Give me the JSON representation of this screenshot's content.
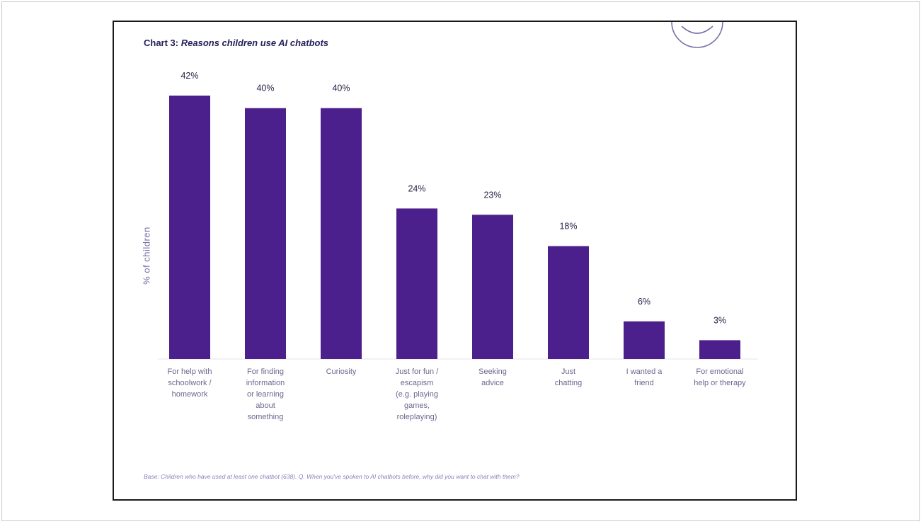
{
  "chart_data": {
    "type": "bar",
    "title_prefix": "Chart 3:",
    "title": "Reasons children use AI chatbots",
    "ylabel": "% of children",
    "xlabel": "",
    "categories": [
      [
        "For help with",
        "schoolwork /",
        "homework"
      ],
      [
        "For finding",
        "information",
        "or learning",
        "about",
        "something"
      ],
      [
        "Curiosity"
      ],
      [
        "Just for fun /",
        "escapism",
        "(e.g. playing",
        "games,",
        "roleplaying)"
      ],
      [
        "Seeking",
        "advice"
      ],
      [
        "Just",
        "chatting"
      ],
      [
        "I wanted a",
        "friend"
      ],
      [
        "For emotional",
        "help or therapy"
      ]
    ],
    "values": [
      42,
      40,
      40,
      24,
      23,
      18,
      6,
      3
    ],
    "data_labels": [
      "42%",
      "40%",
      "40%",
      "24%",
      "23%",
      "18%",
      "6%",
      "3%"
    ],
    "ylim": [
      0,
      42
    ],
    "grid": false,
    "legend": "none",
    "bar_color": "#4b1f8c",
    "footnote": "Base: Children who have used at least one chatbot (638). Q. When you've spoken to AI chatbots before, why did you want to chat with them?"
  }
}
